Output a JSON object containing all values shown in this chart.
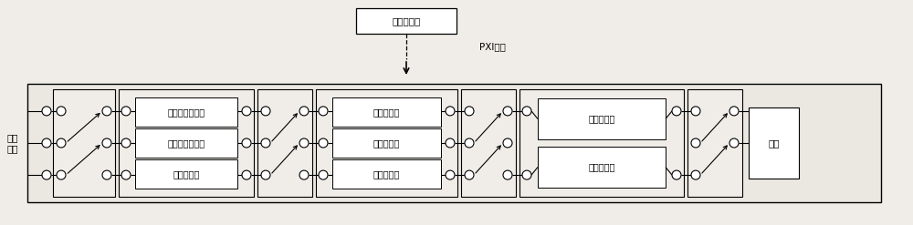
{
  "bg_color": "#f0ede8",
  "box_fill": "#ffffff",
  "inner_fill": "#f0ede8",
  "line_color": "#000000",
  "title": "数字处理器",
  "pxi_label": "PXI总线",
  "input_label": "被检\n信号",
  "output_label": "终端",
  "filter_labels": [
    "第一高通滤波器",
    "第二高通滤波器",
    "低通滤波器"
  ],
  "notch_labels": [
    "第一陷波器",
    "第二陷波器",
    "第三陷波器"
  ],
  "amp_labels": [
    "第一放大器",
    "第二放大器"
  ],
  "font_size": 7.5,
  "sub_font_size": 7.0
}
